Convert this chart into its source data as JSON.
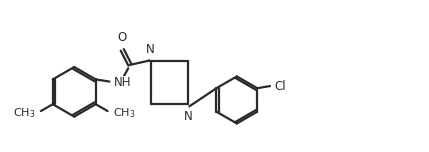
{
  "bg_color": "#ffffff",
  "line_color": "#2a2a2a",
  "line_width": 1.6,
  "font_size": 8.5,
  "figsize": [
    4.29,
    1.52
  ],
  "dpi": 100,
  "xlim": [
    0,
    10
  ],
  "ylim": [
    0,
    3.5
  ]
}
